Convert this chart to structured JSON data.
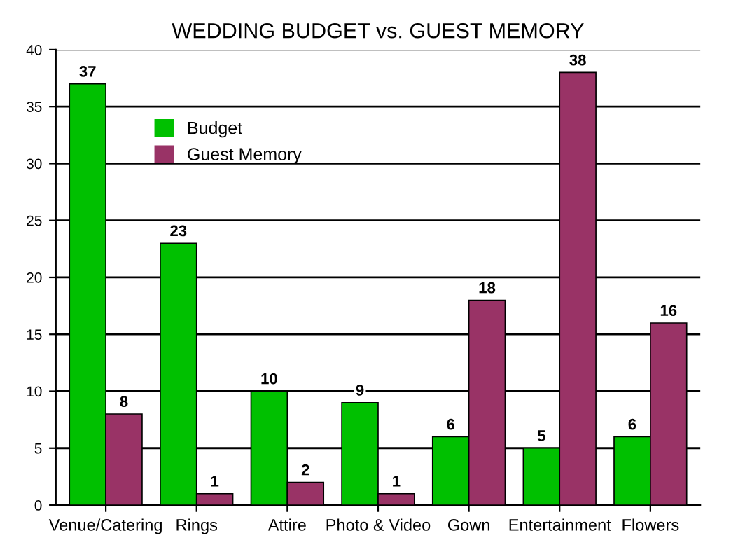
{
  "chart_data": {
    "type": "bar",
    "title": "WEDDING BUDGET vs. GUEST MEMORY",
    "categories": [
      "Venue/Catering",
      "Rings",
      "Attire",
      "Photo & Video",
      "Gown",
      "Entertainment",
      "Flowers"
    ],
    "series": [
      {
        "name": "Budget",
        "color": "#00c000",
        "values": [
          37,
          23,
          10,
          9,
          6,
          5,
          6
        ]
      },
      {
        "name": "Guest Memory",
        "color": "#993366",
        "values": [
          8,
          1,
          2,
          1,
          18,
          38,
          16
        ]
      }
    ],
    "ylim": [
      0,
      40
    ],
    "yticks": [
      0,
      5,
      10,
      15,
      20,
      25,
      30,
      35,
      40
    ],
    "grid": "y",
    "legend": "top left",
    "data_labels": true
  }
}
